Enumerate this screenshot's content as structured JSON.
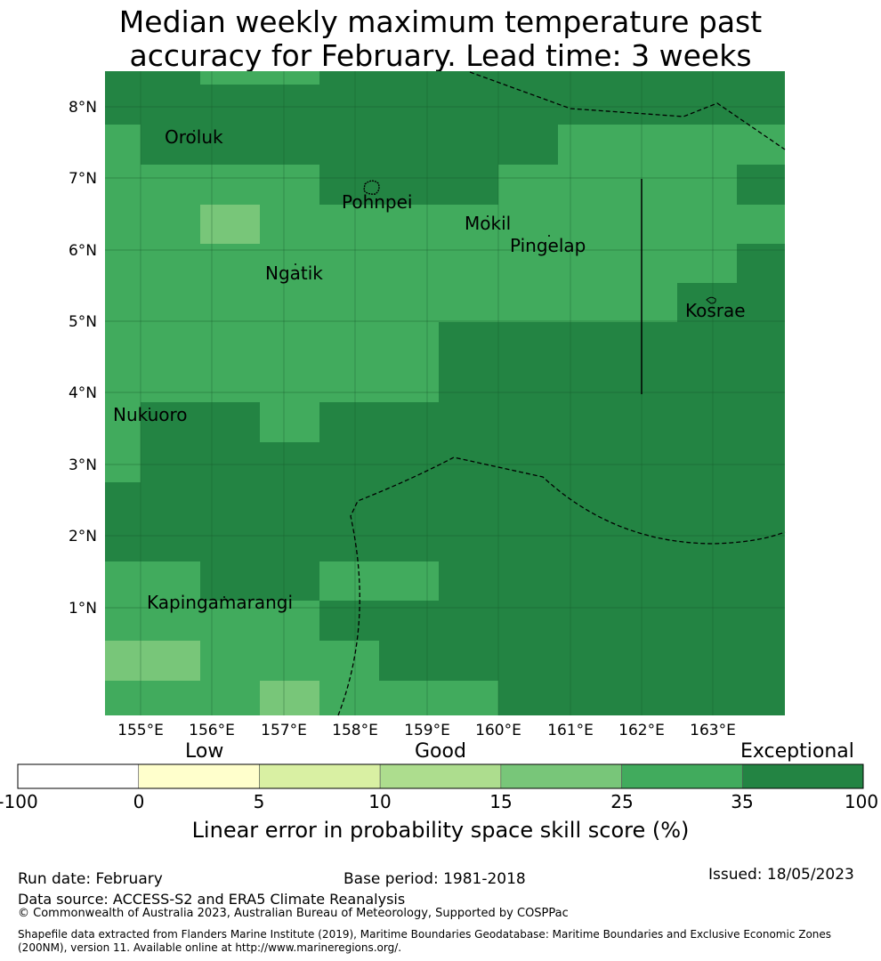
{
  "title_line1": "Median weekly maximum temperature past",
  "title_line2": "accuracy for February. Lead time: 3 weeks",
  "map": {
    "lat_ticks": [
      "8°N",
      "7°N",
      "6°N",
      "5°N",
      "4°N",
      "3°N",
      "2°N",
      "1°N"
    ],
    "lon_ticks": [
      "155°E",
      "156°E",
      "157°E",
      "158°E",
      "159°E",
      "160°E",
      "161°E",
      "162°E",
      "163°E"
    ],
    "places": [
      "Oroluk",
      "Pohnpei",
      "Mokil",
      "Pingelap",
      "Ngatik",
      "Kosrae",
      "Nukuoro",
      "Kapingamarangi"
    ]
  },
  "legend": {
    "category_low": "Low",
    "category_good": "Good",
    "category_exceptional": "Exceptional",
    "ticks": [
      "-100",
      "0",
      "5",
      "10",
      "15",
      "25",
      "35",
      "100"
    ],
    "colors": [
      "#ffffff",
      "#ffffcc",
      "#d9f0a3",
      "#addd8e",
      "#78c679",
      "#41ab5d",
      "#238443"
    ],
    "title": "Linear error in probability space skill score (%)"
  },
  "footer": {
    "run_date": "Run date: February",
    "base_period": "Base period: 1981-2018",
    "issued": "Issued: 18/05/2023",
    "data_source": "Data source: ACCESS-S2 and ERA5 Climate Reanalysis",
    "copyright": "© Commonwealth of Australia 2023, Australian Bureau of Meteorology, Supported by COSPPac",
    "shapefile_line1": "Shapefile data extracted from Flanders Marine Institute (2019), Maritime Boundaries Geodatabase: Maritime Boundaries and Exclusive Economic Zones",
    "shapefile_line2": "(200NM), version 11. Available online at http://www.marineregions.org/."
  }
}
